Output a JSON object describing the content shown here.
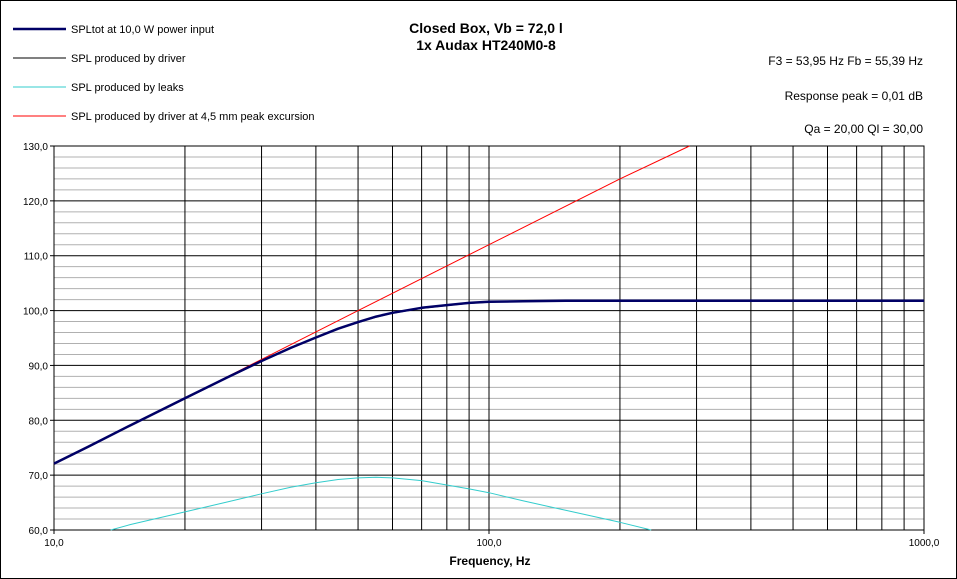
{
  "chart_data": {
    "type": "line",
    "title_lines": [
      "Closed Box, Vb = 72,0 l",
      "1x Audax HT240M0-8"
    ],
    "info_lines": [
      "F3 = 53,95  Hz   Fb = 55,39  Hz",
      "Response peak = 0,01  dB",
      "Qa = 20,00   Ql = 30,00"
    ],
    "xlabel": "Frequency, Hz",
    "ylabel": "",
    "xscale": "log",
    "xlim": [
      10,
      1000
    ],
    "ylim": [
      60,
      130
    ],
    "x_tick_values": [
      10,
      100,
      1000
    ],
    "x_tick_labels": [
      "10,0",
      "100,0",
      "1000,0"
    ],
    "y_tick_values": [
      60,
      70,
      80,
      90,
      100,
      110,
      120,
      130
    ],
    "y_tick_labels": [
      "60,0",
      "70,0",
      "80,0",
      "90,0",
      "100,0",
      "110,0",
      "120,0",
      "130,0"
    ],
    "grid": true,
    "legend_position": "top-left",
    "series": [
      {
        "name": "SPLtot at 10,0 W power input",
        "color": "#000066",
        "x": [
          10,
          12,
          15,
          20,
          25,
          30,
          35,
          40,
          45,
          50,
          55,
          60,
          70,
          80,
          90,
          100,
          120,
          150,
          200,
          300,
          500,
          700,
          1000
        ],
        "y": [
          72.1,
          75.2,
          79.1,
          84.0,
          87.8,
          90.8,
          93.2,
          95.1,
          96.7,
          97.9,
          98.9,
          99.6,
          100.5,
          101.0,
          101.4,
          101.6,
          101.7,
          101.8,
          101.8,
          101.8,
          101.8,
          101.8,
          101.8
        ]
      },
      {
        "name": "SPL produced by driver",
        "color": "#000000",
        "x": [
          10,
          12,
          15,
          20,
          25,
          30,
          35,
          40,
          45,
          50,
          55,
          60,
          70,
          80,
          90,
          100,
          120,
          150,
          200,
          300,
          500,
          700,
          1000
        ],
        "y": [
          72.0,
          75.1,
          79.0,
          83.9,
          87.7,
          90.7,
          93.1,
          95.0,
          96.6,
          97.8,
          98.8,
          99.5,
          100.4,
          100.9,
          101.3,
          101.5,
          101.7,
          101.8,
          101.8,
          101.8,
          101.8,
          101.8,
          101.8
        ]
      },
      {
        "name": "SPL produced by leaks",
        "color": "#33CCCC",
        "x": [
          13.5,
          15,
          20,
          25,
          30,
          35,
          40,
          45,
          50,
          55,
          60,
          70,
          80,
          90,
          100,
          120,
          150,
          200,
          236
        ],
        "y": [
          60.0,
          61.0,
          63.3,
          65.1,
          66.6,
          67.8,
          68.6,
          69.2,
          69.5,
          69.6,
          69.5,
          69.0,
          68.2,
          67.5,
          66.8,
          65.3,
          63.6,
          61.4,
          60.0
        ]
      },
      {
        "name": "SPL produced by driver at 4,5 mm peak excursion",
        "color": "#FF0000",
        "x": [
          10,
          20,
          30,
          50,
          100,
          200,
          289
        ],
        "y": [
          72.0,
          84.0,
          91.1,
          100.0,
          112.0,
          124.0,
          130.0
        ]
      }
    ]
  }
}
